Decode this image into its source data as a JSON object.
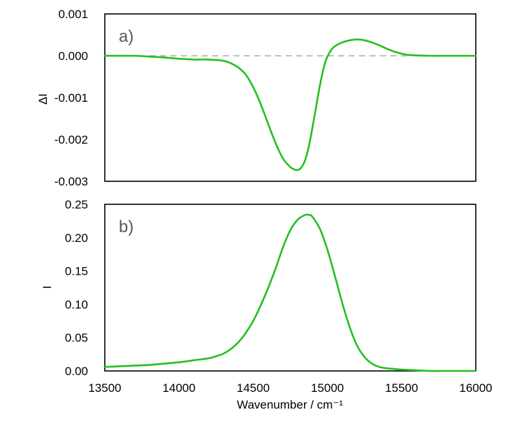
{
  "chart_data": [
    {
      "type": "line",
      "panel_label": "a)",
      "title": "",
      "xlabel": "",
      "ylabel": "ΔI",
      "xlim": [
        13500,
        16000
      ],
      "ylim": [
        -0.003,
        0.001
      ],
      "x_ticks": [],
      "y_ticks": [
        "-0.003",
        "-0.002",
        "-0.001",
        "0.000",
        "0.001"
      ],
      "y_tick_values": [
        -0.003,
        -0.002,
        -0.001,
        0.0,
        0.001
      ],
      "grid": false,
      "reference_line": {
        "y": 0,
        "style": "dashed",
        "color": "#bfbfbf",
        "x_from": 13800,
        "x_to": 15550
      },
      "series": [
        {
          "color": "#22c01e",
          "x": [
            13500,
            13700,
            13800,
            13900,
            14000,
            14100,
            14200,
            14300,
            14350,
            14400,
            14450,
            14500,
            14550,
            14600,
            14650,
            14700,
            14750,
            14780,
            14800,
            14820,
            14840,
            14860,
            14880,
            14900,
            14920,
            14950,
            14980,
            15000,
            15030,
            15060,
            15100,
            15150,
            15200,
            15250,
            15300,
            15350,
            15400,
            15450,
            15500,
            15550,
            15600,
            15700,
            15800,
            16000
          ],
          "y": [
            0.0,
            0.0,
            -2e-05,
            -4e-05,
            -7e-05,
            -9e-05,
            -9e-05,
            -0.00012,
            -0.00018,
            -0.00028,
            -0.00045,
            -0.00075,
            -0.00115,
            -0.00162,
            -0.00208,
            -0.00245,
            -0.00266,
            -0.00272,
            -0.00273,
            -0.00269,
            -0.00258,
            -0.00238,
            -0.00208,
            -0.0017,
            -0.0013,
            -0.0007,
            -0.00022,
            -2e-05,
            0.00016,
            0.00025,
            0.00032,
            0.00037,
            0.00039,
            0.00037,
            0.00032,
            0.00025,
            0.00017,
            0.0001,
            5e-05,
            2e-05,
            1e-05,
            0.0,
            0.0,
            0.0
          ]
        }
      ]
    },
    {
      "type": "line",
      "panel_label": "b)",
      "title": "",
      "xlabel": "Wavenumber / cm⁻¹",
      "ylabel": "I",
      "xlim": [
        13500,
        16000
      ],
      "ylim": [
        0,
        0.25
      ],
      "x_ticks": [
        "13500",
        "14000",
        "14500",
        "15000",
        "15500",
        "16000"
      ],
      "x_tick_values": [
        13500,
        14000,
        14500,
        15000,
        15500,
        16000
      ],
      "y_ticks": [
        "0.00",
        "0.05",
        "0.10",
        "0.15",
        "0.20",
        "0.25"
      ],
      "y_tick_values": [
        0,
        0.05,
        0.1,
        0.15,
        0.2,
        0.25
      ],
      "grid": false,
      "series": [
        {
          "color": "#22c01e",
          "x": [
            13500,
            13600,
            13700,
            13800,
            13900,
            14000,
            14100,
            14200,
            14250,
            14300,
            14350,
            14400,
            14450,
            14500,
            14550,
            14600,
            14650,
            14700,
            14750,
            14800,
            14850,
            14880,
            14900,
            14950,
            15000,
            15050,
            15100,
            15150,
            15200,
            15250,
            15300,
            15350,
            15400,
            15450,
            15500,
            15600,
            15700,
            15800,
            16000
          ],
          "y": [
            0.006,
            0.007,
            0.008,
            0.009,
            0.011,
            0.013,
            0.016,
            0.019,
            0.022,
            0.026,
            0.033,
            0.043,
            0.057,
            0.075,
            0.098,
            0.124,
            0.153,
            0.185,
            0.211,
            0.227,
            0.234,
            0.234,
            0.231,
            0.213,
            0.182,
            0.143,
            0.102,
            0.066,
            0.038,
            0.021,
            0.011,
            0.006,
            0.004,
            0.003,
            0.002,
            0.001,
            0.0,
            0.0,
            0.0
          ]
        }
      ]
    }
  ]
}
